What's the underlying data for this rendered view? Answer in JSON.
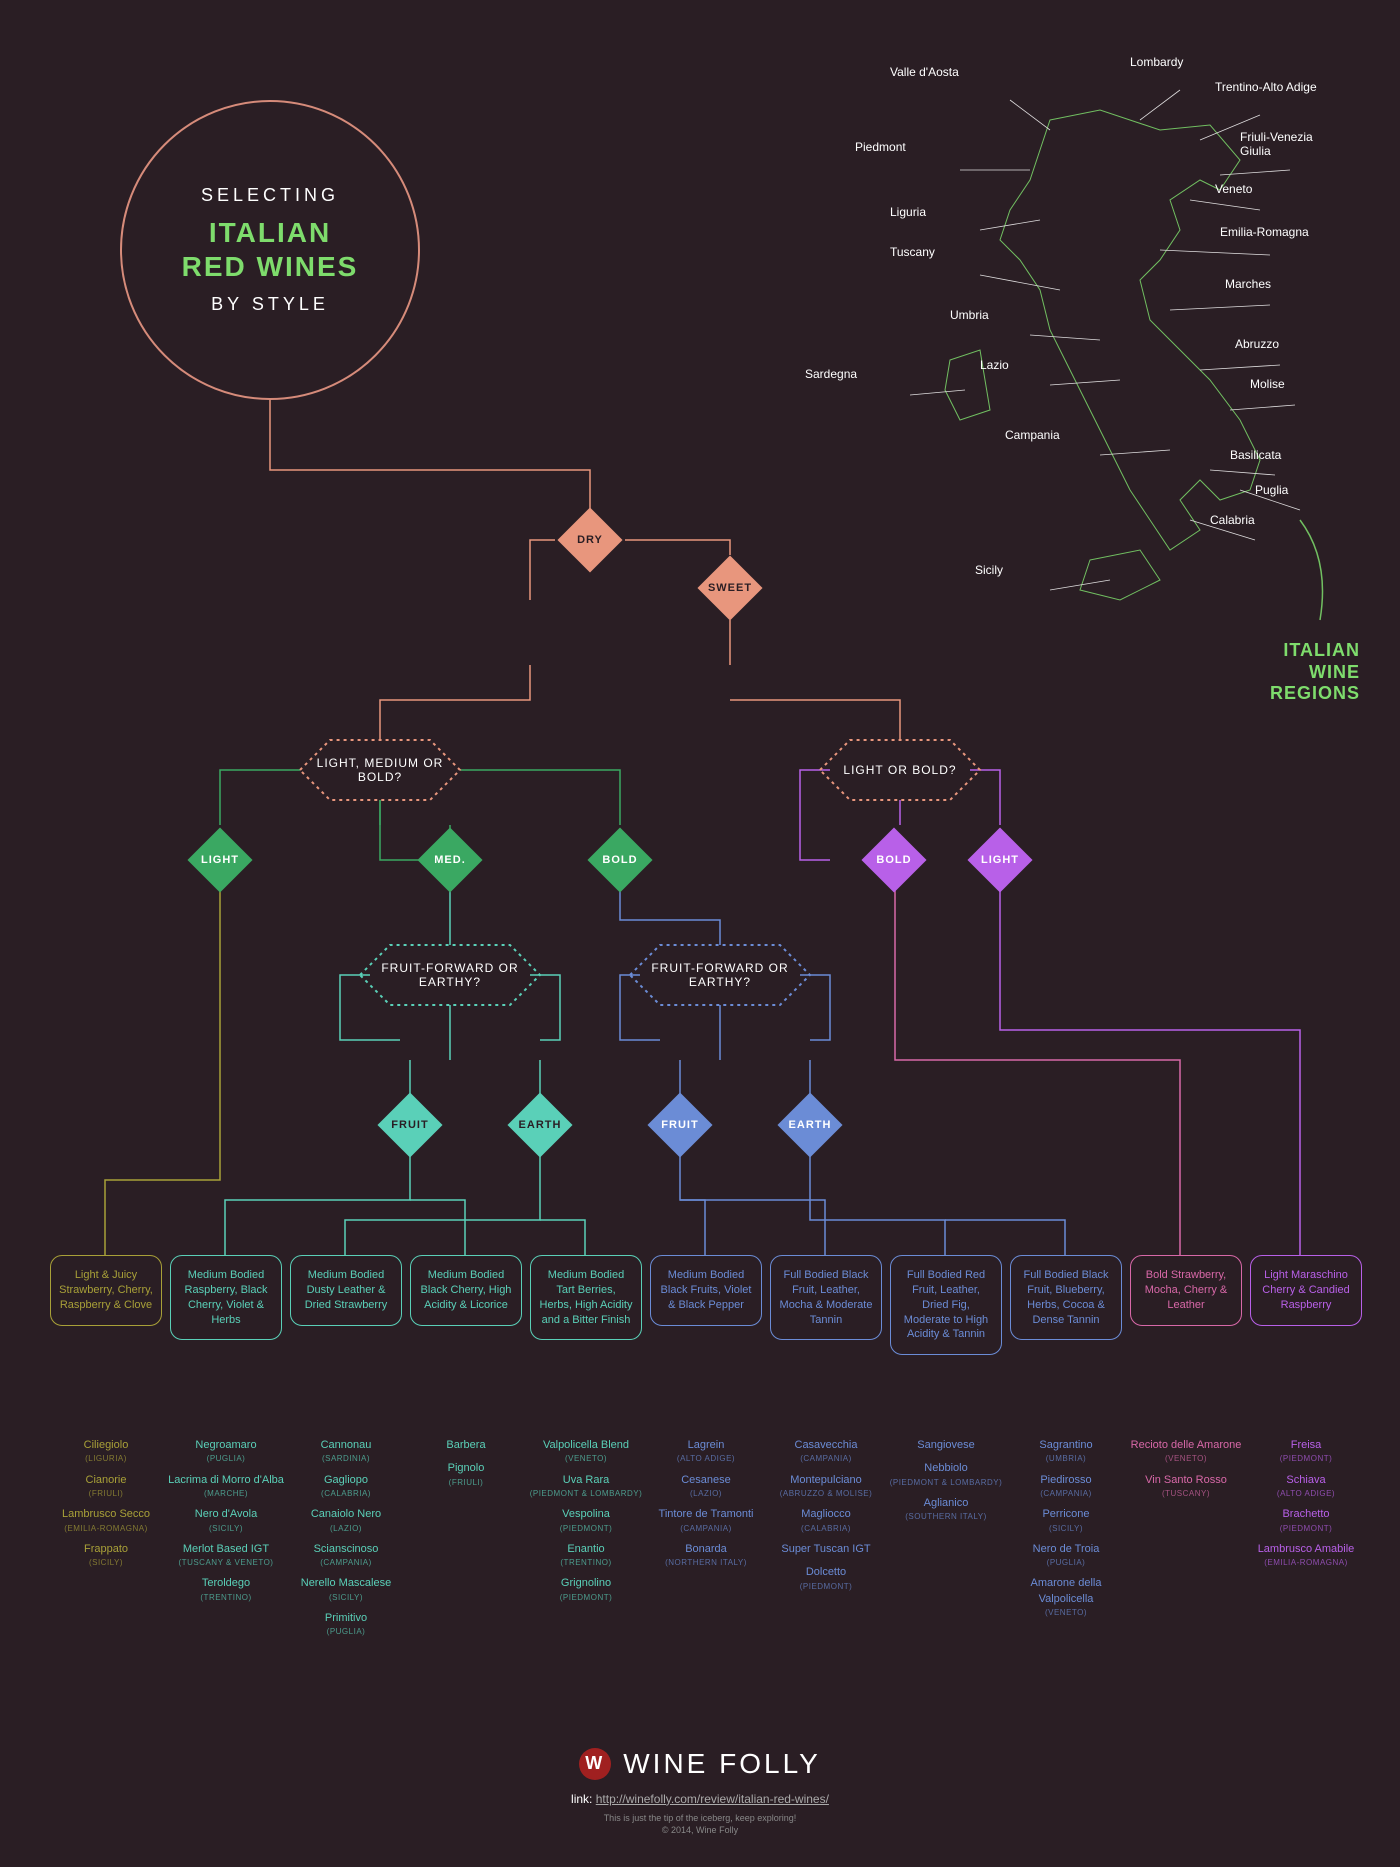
{
  "type": "flowchart",
  "colors": {
    "bg": "#2a1e24",
    "circle": "#d68b7a",
    "salmon": "#e8967d",
    "green_bright": "#7edc6c",
    "green_dark": "#3aa862",
    "teal": "#5ad0b8",
    "blue": "#6b8cd6",
    "purple": "#b860e8",
    "pink": "#d868a8",
    "yellow_olive": "#a8a038",
    "white": "#ffffff"
  },
  "title": {
    "selecting": "SELECTING",
    "main_line1": "ITALIAN",
    "main_line2": "RED WINES",
    "by": "BY STYLE"
  },
  "map": {
    "title_line1": "ITALIAN",
    "title_line2": "WINE",
    "title_line3": "REGIONS",
    "regions": [
      "Valle d'Aosta",
      "Lombardy",
      "Trentino-Alto Adige",
      "Piedmont",
      "Friuli-Venezia Giulia",
      "Liguria",
      "Veneto",
      "Tuscany",
      "Emilia-Romagna",
      "Umbria",
      "Marches",
      "Lazio",
      "Abruzzo",
      "Sardegna",
      "Molise",
      "Campania",
      "Basilicata",
      "Puglia",
      "Calabria",
      "Sicily"
    ]
  },
  "nodes": {
    "dry": "DRY",
    "sweet": "SWEET",
    "q1": "LIGHT, MEDIUM OR BOLD?",
    "q2": "LIGHT OR BOLD?",
    "light1": "LIGHT",
    "med": "MED.",
    "bold1": "BOLD",
    "bold2": "BOLD",
    "light2": "LIGHT",
    "q3": "FRUIT-FORWARD OR EARTHY?",
    "q4": "FRUIT-FORWARD OR EARTHY?",
    "fruit1": "FRUIT",
    "earth1": "EARTH",
    "fruit2": "FRUIT",
    "earth2": "EARTH"
  },
  "endpoints": [
    {
      "color": "#a8a038",
      "desc": "Light & Juicy Strawberry, Cherry, Raspberry & Clove",
      "wines": [
        {
          "name": "Ciliegiolo",
          "region": "(LIGURIA)"
        },
        {
          "name": "Cianorie",
          "region": "(FRIULI)"
        },
        {
          "name": "Lambrusco Secco",
          "region": "(EMILIA-ROMAGNA)"
        },
        {
          "name": "Frappato",
          "region": "(SICILY)"
        }
      ]
    },
    {
      "color": "#5ad0b8",
      "desc": "Medium Bodied Raspberry, Black Cherry, Violet & Herbs",
      "wines": [
        {
          "name": "Negroamaro",
          "region": "(PUGLIA)"
        },
        {
          "name": "Lacrima di Morro d'Alba",
          "region": "(MARCHE)"
        },
        {
          "name": "Nero d'Avola",
          "region": "(SICILY)"
        },
        {
          "name": "Merlot Based IGT",
          "region": "(TUSCANY & VENETO)"
        },
        {
          "name": "Teroldego",
          "region": "(TRENTINO)"
        }
      ]
    },
    {
      "color": "#5ad0b8",
      "desc": "Medium Bodied Dusty Leather & Dried Strawberry",
      "wines": [
        {
          "name": "Cannonau",
          "region": "(SARDINIA)"
        },
        {
          "name": "Gagliopo",
          "region": "(CALABRIA)"
        },
        {
          "name": "Canaiolo Nero",
          "region": "(LAZIO)"
        },
        {
          "name": "Scianscinoso",
          "region": "(CAMPANIA)"
        },
        {
          "name": "Nerello Mascalese",
          "region": "(SICILY)"
        },
        {
          "name": "Primitivo",
          "region": "(PUGLIA)"
        }
      ]
    },
    {
      "color": "#5ad0b8",
      "desc": "Medium Bodied Black Cherry, High Acidity & Licorice",
      "wines": [
        {
          "name": "Barbera",
          "region": ""
        },
        {
          "name": "Pignolo",
          "region": "(FRIULI)"
        }
      ]
    },
    {
      "color": "#5ad0b8",
      "desc": "Medium Bodied Tart Berries, Herbs, High Acidity and a Bitter Finish",
      "wines": [
        {
          "name": "Valpolicella Blend",
          "region": "(VENETO)"
        },
        {
          "name": "Uva Rara",
          "region": "(PIEDMONT & LOMBARDY)"
        },
        {
          "name": "Vespolina",
          "region": "(PIEDMONT)"
        },
        {
          "name": "Enantio",
          "region": "(TRENTINO)"
        },
        {
          "name": "Grignolino",
          "region": "(PIEDMONT)"
        }
      ]
    },
    {
      "color": "#6b8cd6",
      "desc": "Medium Bodied Black Fruits, Violet & Black Pepper",
      "wines": [
        {
          "name": "Lagrein",
          "region": "(ALTO ADIGE)"
        },
        {
          "name": "Cesanese",
          "region": "(LAZIO)"
        },
        {
          "name": "Tintore de Tramonti",
          "region": "(CAMPANIA)"
        },
        {
          "name": "Bonarda",
          "region": "(NORTHERN ITALY)"
        }
      ]
    },
    {
      "color": "#6b8cd6",
      "desc": "Full Bodied Black Fruit, Leather, Mocha & Moderate Tannin",
      "wines": [
        {
          "name": "Casavecchia",
          "region": "(CAMPANIA)"
        },
        {
          "name": "Montepulciano",
          "region": "(ABRUZZO & MOLISE)"
        },
        {
          "name": "Magliocco",
          "region": "(CALABRIA)"
        },
        {
          "name": "Super Tuscan IGT",
          "region": ""
        },
        {
          "name": "Dolcetto",
          "region": "(PIEDMONT)"
        }
      ]
    },
    {
      "color": "#6b8cd6",
      "desc": "Full Bodied Red Fruit, Leather, Dried Fig, Moderate to High Acidity & Tannin",
      "wines": [
        {
          "name": "Sangiovese",
          "region": ""
        },
        {
          "name": "Nebbiolo",
          "region": "(PIEDMONT & LOMBARDY)"
        },
        {
          "name": "Aglianico",
          "region": "(SOUTHERN ITALY)"
        }
      ]
    },
    {
      "color": "#6b8cd6",
      "desc": "Full Bodied Black Fruit, Blueberry, Herbs, Cocoa & Dense Tannin",
      "wines": [
        {
          "name": "Sagrantino",
          "region": "(UMBRIA)"
        },
        {
          "name": "Piedirosso",
          "region": "(CAMPANIA)"
        },
        {
          "name": "Perricone",
          "region": "(SICILY)"
        },
        {
          "name": "Nero de Troia",
          "region": "(PUGLIA)"
        },
        {
          "name": "Amarone della Valpolicella",
          "region": "(VENETO)"
        }
      ]
    },
    {
      "color": "#d868a8",
      "desc": "Bold Strawberry, Mocha, Cherry & Leather",
      "wines": [
        {
          "name": "Recioto delle Amarone",
          "region": "(VENETO)"
        },
        {
          "name": "Vin Santo Rosso",
          "region": "(TUSCANY)"
        }
      ]
    },
    {
      "color": "#b860e8",
      "desc": "Light Maraschino Cherry & Candied Raspberry",
      "wines": [
        {
          "name": "Freisa",
          "region": "(PIEDMONT)"
        },
        {
          "name": "Schiava",
          "region": "(ALTO ADIGE)"
        },
        {
          "name": "Brachetto",
          "region": "(PIEDMONT)"
        },
        {
          "name": "Lambrusco Amabile",
          "region": "(EMILIA-ROMAGNA)"
        }
      ]
    }
  ],
  "footer": {
    "brand": "WINE FOLLY",
    "link_label": "link:",
    "link_url": "http://winefolly.com/review/italian-red-wines/",
    "copy_line1": "This is just the tip of the iceberg, keep exploring!",
    "copy_line2": "© 2014, Wine Folly"
  }
}
